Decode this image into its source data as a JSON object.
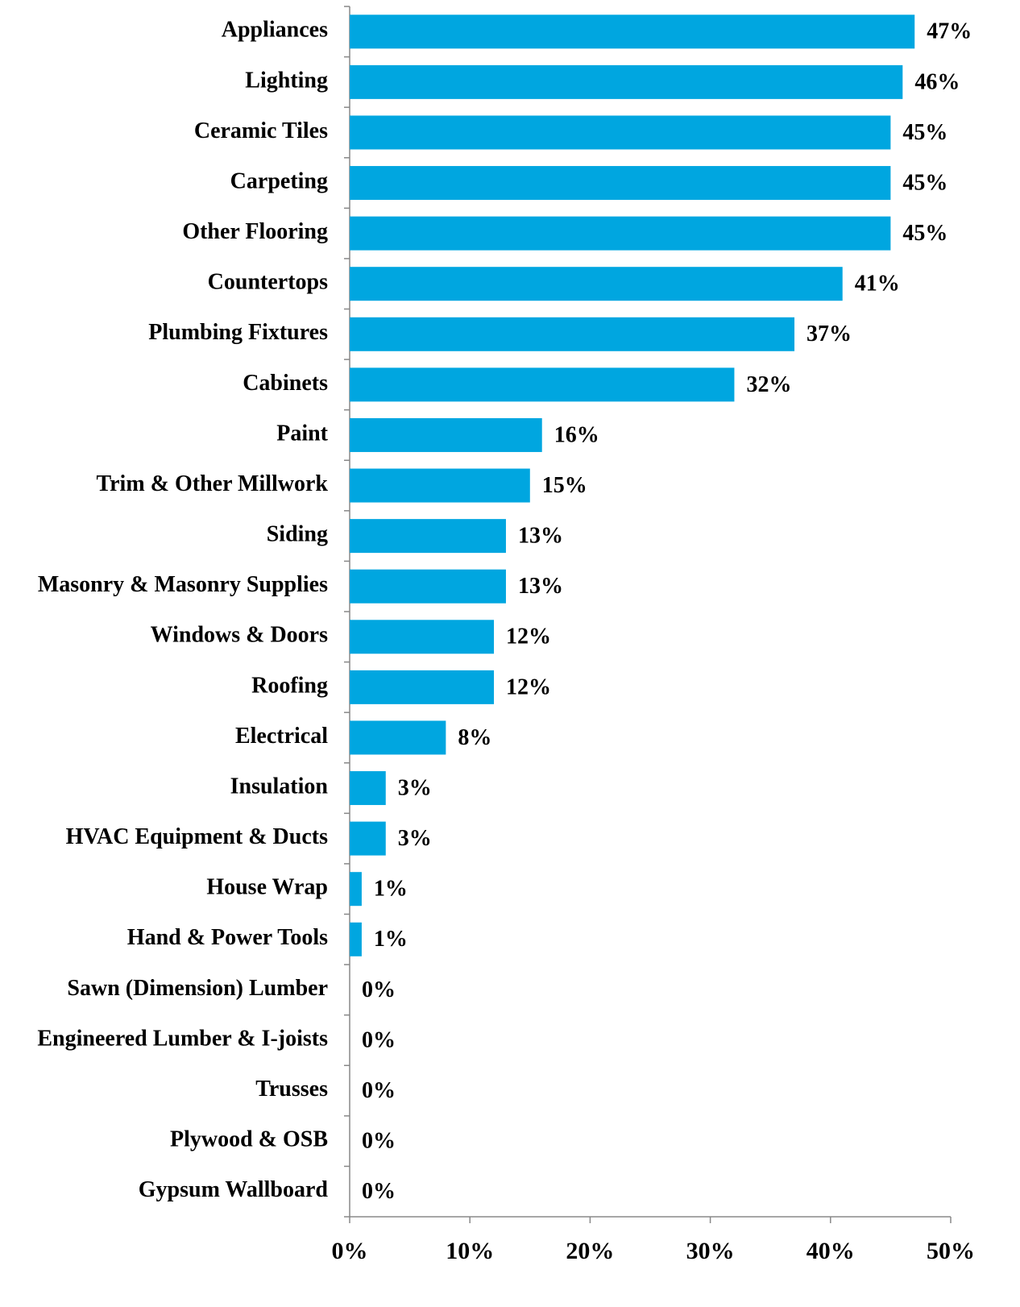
{
  "chart_data": {
    "type": "bar",
    "orientation": "horizontal",
    "categories": [
      "Appliances",
      "Lighting",
      "Ceramic Tiles",
      "Carpeting",
      "Other Flooring",
      "Countertops",
      "Plumbing Fixtures",
      "Cabinets",
      "Paint",
      "Trim & Other Millwork",
      "Siding",
      "Masonry & Masonry Supplies",
      "Windows & Doors",
      "Roofing",
      "Electrical",
      "Insulation",
      "HVAC Equipment & Ducts",
      "House Wrap",
      "Hand & Power Tools",
      "Sawn (Dimension) Lumber",
      "Engineered Lumber & I-joists",
      "Trusses",
      "Plywood & OSB",
      "Gypsum Wallboard"
    ],
    "values": [
      47,
      46,
      45,
      45,
      45,
      41,
      37,
      32,
      16,
      15,
      13,
      13,
      12,
      12,
      8,
      3,
      3,
      1,
      1,
      0,
      0,
      0,
      0,
      0
    ],
    "value_labels": [
      "47%",
      "46%",
      "45%",
      "45%",
      "45%",
      "41%",
      "37%",
      "32%",
      "16%",
      "15%",
      "13%",
      "13%",
      "12%",
      "12%",
      "8%",
      "3%",
      "3%",
      "1%",
      "1%",
      "0%",
      "0%",
      "0%",
      "0%",
      "0%"
    ],
    "color": "#00a6e0",
    "xlim": [
      0,
      50
    ],
    "xticks": [
      {
        "value": 0,
        "label": "0%"
      },
      {
        "value": 10,
        "label": "10%"
      },
      {
        "value": 20,
        "label": "20%"
      },
      {
        "value": 30,
        "label": "30%"
      },
      {
        "value": 40,
        "label": "40%"
      },
      {
        "value": 50,
        "label": "50%"
      }
    ],
    "grid": false
  }
}
